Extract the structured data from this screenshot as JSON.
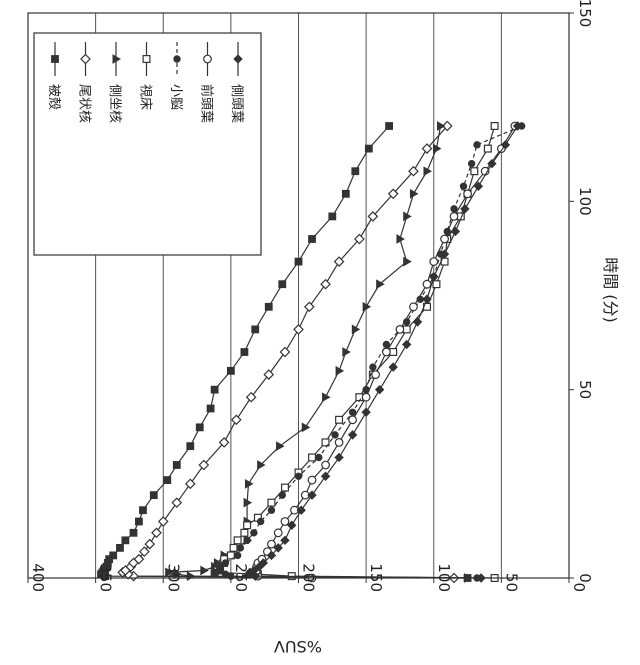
{
  "chart_data": {
    "type": "line",
    "orientation": "rotated-90",
    "xlabel": "時間 (分)",
    "ylabel": "%SUV",
    "xlim": [
      0,
      150
    ],
    "ylim": [
      0,
      400
    ],
    "x_ticks": [
      0,
      50,
      100,
      150
    ],
    "y_ticks": [
      0,
      50,
      100,
      150,
      200,
      250,
      300,
      350,
      400
    ],
    "grid": "major-y",
    "legend_position": "top-left",
    "series": [
      {
        "name": "被殻",
        "marker": "filled-square",
        "line": "solid",
        "color": "#333333",
        "x": [
          0,
          0.5,
          1,
          1.5,
          2,
          2.5,
          3,
          4,
          5,
          6,
          8,
          10,
          12,
          15,
          18,
          22,
          26,
          30,
          35,
          40,
          45,
          50,
          55,
          60,
          66,
          72,
          78,
          84,
          90,
          96,
          102,
          108,
          114,
          120
        ],
        "y": [
          75,
          343,
          346,
          345,
          344,
          343,
          342,
          341,
          340,
          337,
          332,
          328,
          322,
          318,
          315,
          307,
          297,
          290,
          280,
          273,
          265,
          262,
          250,
          240,
          232,
          222,
          212,
          200,
          190,
          175,
          165,
          158,
          148,
          133
        ]
      },
      {
        "name": "尾状核",
        "marker": "open-diamond",
        "line": "solid",
        "color": "#333333",
        "x": [
          0,
          0.5,
          1,
          1.5,
          2,
          3,
          4,
          5,
          7,
          9,
          12,
          15,
          20,
          25,
          30,
          36,
          42,
          48,
          54,
          60,
          66,
          72,
          78,
          84,
          90,
          96,
          102,
          108,
          114,
          120
        ],
        "y": [
          85,
          322,
          326,
          330,
          328,
          324,
          322,
          318,
          314,
          310,
          305,
          300,
          290,
          280,
          270,
          255,
          246,
          235,
          222,
          210,
          200,
          192,
          180,
          170,
          155,
          145,
          130,
          115,
          105,
          90
        ]
      },
      {
        "name": "側坐核",
        "marker": "filled-triangle",
        "line": "solid",
        "color": "#333333",
        "x": [
          0,
          0.5,
          1,
          1.5,
          2,
          3,
          4,
          6,
          8,
          10,
          15,
          20,
          25,
          30,
          35,
          40,
          48,
          55,
          60,
          66,
          72,
          78,
          84,
          90,
          96,
          102,
          108,
          114,
          120
        ],
        "y": [
          75,
          280,
          290,
          296,
          270,
          262,
          260,
          255,
          245,
          238,
          238,
          238,
          237,
          228,
          214,
          195,
          180,
          170,
          165,
          158,
          150,
          140,
          120,
          125,
          120,
          115,
          105,
          98,
          95
        ]
      },
      {
        "name": "視床",
        "marker": "open-square",
        "line": "solid",
        "color": "#333333",
        "x": [
          0,
          0.5,
          1,
          1.5,
          2,
          3,
          4,
          5,
          6,
          8,
          10,
          12,
          14,
          16,
          20,
          24,
          28,
          32,
          36,
          42,
          48,
          54,
          60,
          66,
          72,
          78,
          84,
          90,
          96,
          102,
          108,
          114,
          120
        ],
        "y": [
          55,
          205,
          230,
          262,
          260,
          258,
          255,
          255,
          250,
          248,
          245,
          240,
          238,
          230,
          220,
          210,
          200,
          190,
          180,
          170,
          155,
          145,
          130,
          120,
          105,
          98,
          92,
          90,
          80,
          75,
          70,
          60,
          55
        ]
      },
      {
        "name": "小脳",
        "marker": "filled-circle",
        "line": "dashed",
        "color": "#333333",
        "x": [
          0,
          0.5,
          1,
          1.5,
          2,
          3,
          4,
          6,
          8,
          10,
          12,
          15,
          18,
          22,
          27,
          32,
          38,
          44,
          50,
          56,
          62,
          68,
          74,
          80,
          86,
          92,
          98,
          104,
          110,
          115,
          120
        ],
        "y": [
          68,
          250,
          254,
          262,
          258,
          258,
          254,
          245,
          243,
          238,
          233,
          228,
          220,
          212,
          200,
          185,
          173,
          160,
          150,
          145,
          135,
          120,
          110,
          100,
          95,
          90,
          85,
          78,
          72,
          68,
          35
        ]
      },
      {
        "name": "前頭葉",
        "marker": "open-circle",
        "line": "solid",
        "color": "#333333",
        "x": [
          0,
          0.5,
          1,
          1.5,
          2,
          3,
          4,
          5,
          7,
          9,
          12,
          15,
          18,
          22,
          26,
          30,
          36,
          42,
          48,
          54,
          60,
          66,
          72,
          78,
          84,
          90,
          96,
          102,
          108,
          114,
          120
        ],
        "y": [
          190,
          230,
          232,
          232,
          231,
          231,
          230,
          227,
          223,
          220,
          215,
          210,
          203,
          195,
          190,
          180,
          170,
          160,
          150,
          143,
          135,
          125,
          115,
          105,
          100,
          92,
          85,
          75,
          62,
          50,
          40
        ]
      },
      {
        "name": "側頭葉",
        "marker": "filled-diamond",
        "line": "solid",
        "color": "#333333",
        "x": [
          0,
          0.5,
          1,
          1.5,
          2,
          3,
          4,
          6,
          8,
          10,
          14,
          18,
          22,
          27,
          32,
          38,
          44,
          50,
          56,
          62,
          68,
          74,
          80,
          86,
          92,
          98,
          104,
          110,
          115,
          120
        ],
        "y": [
          65,
          232,
          236,
          236,
          233,
          229,
          226,
          220,
          215,
          210,
          205,
          198,
          190,
          180,
          170,
          160,
          150,
          140,
          130,
          120,
          112,
          105,
          100,
          92,
          84,
          77,
          67,
          57,
          47,
          38
        ]
      }
    ]
  }
}
